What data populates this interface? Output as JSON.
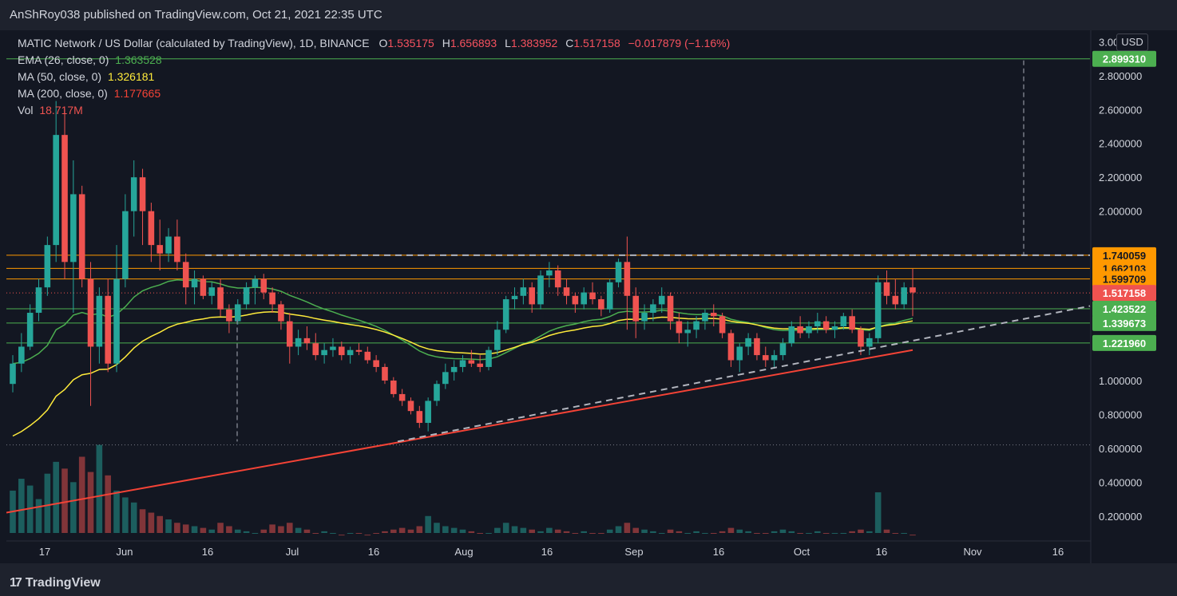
{
  "header": {
    "published": "AnShRoy038 published on TradingView.com, Oct 21, 2021 22:35 UTC"
  },
  "footer": {
    "logo_text": "TradingView",
    "logo_mark": "17"
  },
  "legend": {
    "symbol": "MATIC Network / US Dollar (calculated by TradingView), 1D, BINANCE",
    "o_key": "O",
    "o_val": "1.535175",
    "h_key": "H",
    "h_val": "1.656893",
    "l_key": "L",
    "l_val": "1.383952",
    "c_key": "C",
    "c_val": "1.517158",
    "change": "−0.017879 (−1.16%)",
    "ema_label": "EMA (26, close, 0)",
    "ema_val": "1.363528",
    "ma50_label": "MA (50, close, 0)",
    "ma50_val": "1.326181",
    "ma200_label": "MA (200, close, 0)",
    "ma200_val": "1.177665",
    "vol_label": "Vol",
    "vol_val": "18.717M"
  },
  "currency": "USD",
  "colors": {
    "up": "#26a69a",
    "down": "#ef5350",
    "ema": "#4caf50",
    "ma50": "#ffeb3b",
    "ma200": "#f44336",
    "orange": "#ff9800",
    "green": "#4caf50",
    "dashed": "#b2b5be",
    "bg": "#131722"
  },
  "chart_data": {
    "type": "candlestick",
    "title": "MATIC Network / US Dollar (calculated by TradingView), 1D, BINANCE",
    "y_ticks": [
      "3.000000",
      "2.800000",
      "2.600000",
      "2.400000",
      "2.200000",
      "2.000000",
      "1.000000",
      "0.800000",
      "0.600000",
      "0.400000",
      "0.200000"
    ],
    "x_ticks": [
      "17",
      "Jun",
      "16",
      "Jul",
      "16",
      "Aug",
      "16",
      "Sep",
      "16",
      "Oct",
      "16",
      "Nov",
      "16"
    ],
    "ylim": [
      0.1,
      3.03
    ],
    "price_labels": [
      {
        "value": 2.89931,
        "text": "2.899310",
        "color": "#4caf50"
      },
      {
        "value": 1.740059,
        "text": "1.740059",
        "color": "#ff9800"
      },
      {
        "value": 1.662103,
        "text": "1.662103",
        "color": "#ff9800"
      },
      {
        "value": 1.599709,
        "text": "1.599709",
        "color": "#ff9800"
      },
      {
        "value": 1.517158,
        "text": "1.517158",
        "color": "#ef5350"
      },
      {
        "value": 1.423522,
        "text": "1.423522",
        "color": "#4caf50"
      },
      {
        "value": 1.339673,
        "text": "1.339673",
        "color": "#4caf50"
      },
      {
        "value": 1.22196,
        "text": "1.221960",
        "color": "#4caf50"
      }
    ],
    "candles": [
      [
        0.98,
        1.15,
        0.93,
        1.1
      ],
      [
        1.1,
        1.28,
        1.05,
        1.2
      ],
      [
        1.2,
        1.45,
        1.18,
        1.4
      ],
      [
        1.4,
        1.6,
        1.35,
        1.55
      ],
      [
        1.55,
        1.85,
        1.5,
        1.8
      ],
      [
        1.8,
        2.65,
        1.7,
        2.45
      ],
      [
        2.45,
        2.6,
        1.6,
        1.7
      ],
      [
        1.7,
        2.3,
        1.4,
        2.1
      ],
      [
        2.1,
        2.15,
        1.55,
        1.6
      ],
      [
        1.6,
        1.7,
        0.85,
        1.2
      ],
      [
        1.2,
        1.55,
        1.1,
        1.5
      ],
      [
        1.5,
        1.6,
        1.05,
        1.1
      ],
      [
        1.1,
        1.8,
        1.05,
        1.6
      ],
      [
        1.6,
        2.1,
        1.55,
        2.0
      ],
      [
        2.0,
        2.3,
        1.85,
        2.2
      ],
      [
        2.2,
        2.25,
        1.8,
        2.0
      ],
      [
        2.0,
        2.05,
        1.7,
        1.8
      ],
      [
        1.8,
        1.95,
        1.65,
        1.75
      ],
      [
        1.75,
        1.9,
        1.7,
        1.85
      ],
      [
        1.85,
        1.95,
        1.65,
        1.7
      ],
      [
        1.7,
        1.75,
        1.45,
        1.55
      ],
      [
        1.55,
        1.65,
        1.45,
        1.6
      ],
      [
        1.6,
        1.62,
        1.48,
        1.5
      ],
      [
        1.5,
        1.58,
        1.45,
        1.55
      ],
      [
        1.55,
        1.6,
        1.38,
        1.42
      ],
      [
        1.42,
        1.45,
        1.28,
        1.35
      ],
      [
        1.35,
        1.48,
        1.33,
        1.45
      ],
      [
        1.45,
        1.58,
        1.42,
        1.55
      ],
      [
        1.55,
        1.62,
        1.45,
        1.6
      ],
      [
        1.6,
        1.63,
        1.48,
        1.52
      ],
      [
        1.52,
        1.55,
        1.4,
        1.45
      ],
      [
        1.45,
        1.47,
        1.3,
        1.35
      ],
      [
        1.35,
        1.4,
        1.1,
        1.2
      ],
      [
        1.2,
        1.3,
        1.15,
        1.25
      ],
      [
        1.25,
        1.32,
        1.18,
        1.22
      ],
      [
        1.22,
        1.28,
        1.12,
        1.15
      ],
      [
        1.15,
        1.22,
        1.1,
        1.18
      ],
      [
        1.18,
        1.25,
        1.14,
        1.2
      ],
      [
        1.2,
        1.23,
        1.12,
        1.15
      ],
      [
        1.15,
        1.2,
        1.1,
        1.18
      ],
      [
        1.18,
        1.22,
        1.15,
        1.17
      ],
      [
        1.17,
        1.2,
        1.1,
        1.12
      ],
      [
        1.12,
        1.15,
        1.05,
        1.08
      ],
      [
        1.08,
        1.1,
        0.98,
        1.0
      ],
      [
        1.0,
        1.02,
        0.9,
        0.92
      ],
      [
        0.92,
        0.95,
        0.85,
        0.88
      ],
      [
        0.88,
        0.9,
        0.8,
        0.82
      ],
      [
        0.82,
        0.85,
        0.72,
        0.75
      ],
      [
        0.75,
        0.9,
        0.7,
        0.88
      ],
      [
        0.88,
        1.0,
        0.85,
        0.98
      ],
      [
        0.98,
        1.1,
        0.95,
        1.05
      ],
      [
        1.05,
        1.12,
        1.0,
        1.08
      ],
      [
        1.08,
        1.15,
        1.05,
        1.12
      ],
      [
        1.12,
        1.18,
        1.08,
        1.1
      ],
      [
        1.1,
        1.15,
        1.05,
        1.08
      ],
      [
        1.08,
        1.2,
        1.06,
        1.18
      ],
      [
        1.18,
        1.35,
        1.15,
        1.3
      ],
      [
        1.3,
        1.5,
        1.28,
        1.48
      ],
      [
        1.48,
        1.55,
        1.42,
        1.5
      ],
      [
        1.5,
        1.6,
        1.45,
        1.55
      ],
      [
        1.55,
        1.58,
        1.4,
        1.45
      ],
      [
        1.45,
        1.65,
        1.42,
        1.62
      ],
      [
        1.62,
        1.7,
        1.55,
        1.65
      ],
      [
        1.65,
        1.68,
        1.5,
        1.55
      ],
      [
        1.55,
        1.6,
        1.45,
        1.5
      ],
      [
        1.5,
        1.52,
        1.4,
        1.45
      ],
      [
        1.45,
        1.55,
        1.42,
        1.52
      ],
      [
        1.52,
        1.58,
        1.45,
        1.48
      ],
      [
        1.48,
        1.5,
        1.38,
        1.42
      ],
      [
        1.42,
        1.6,
        1.4,
        1.58
      ],
      [
        1.58,
        1.72,
        1.55,
        1.7
      ],
      [
        1.7,
        1.85,
        1.3,
        1.5
      ],
      [
        1.5,
        1.55,
        1.25,
        1.35
      ],
      [
        1.35,
        1.45,
        1.3,
        1.4
      ],
      [
        1.4,
        1.48,
        1.35,
        1.45
      ],
      [
        1.45,
        1.55,
        1.4,
        1.5
      ],
      [
        1.5,
        1.52,
        1.3,
        1.35
      ],
      [
        1.35,
        1.4,
        1.22,
        1.28
      ],
      [
        1.28,
        1.35,
        1.2,
        1.3
      ],
      [
        1.3,
        1.38,
        1.25,
        1.35
      ],
      [
        1.35,
        1.42,
        1.3,
        1.4
      ],
      [
        1.4,
        1.45,
        1.32,
        1.38
      ],
      [
        1.38,
        1.4,
        1.25,
        1.28
      ],
      [
        1.28,
        1.3,
        1.08,
        1.12
      ],
      [
        1.12,
        1.22,
        1.05,
        1.2
      ],
      [
        1.2,
        1.28,
        1.15,
        1.25
      ],
      [
        1.25,
        1.28,
        1.12,
        1.15
      ],
      [
        1.15,
        1.2,
        1.08,
        1.12
      ],
      [
        1.12,
        1.18,
        1.08,
        1.15
      ],
      [
        1.15,
        1.25,
        1.12,
        1.22
      ],
      [
        1.22,
        1.35,
        1.2,
        1.32
      ],
      [
        1.32,
        1.38,
        1.25,
        1.28
      ],
      [
        1.28,
        1.35,
        1.25,
        1.32
      ],
      [
        1.32,
        1.4,
        1.28,
        1.35
      ],
      [
        1.35,
        1.38,
        1.28,
        1.3
      ],
      [
        1.3,
        1.35,
        1.25,
        1.32
      ],
      [
        1.32,
        1.4,
        1.3,
        1.38
      ],
      [
        1.38,
        1.42,
        1.28,
        1.3
      ],
      [
        1.3,
        1.32,
        1.15,
        1.2
      ],
      [
        1.2,
        1.28,
        1.15,
        1.25
      ],
      [
        1.25,
        1.62,
        1.22,
        1.58
      ],
      [
        1.58,
        1.65,
        1.45,
        1.5
      ],
      [
        1.5,
        1.6,
        1.42,
        1.45
      ],
      [
        1.45,
        1.58,
        1.42,
        1.55
      ],
      [
        1.55,
        1.66,
        1.38,
        1.52
      ]
    ],
    "volumes": [
      0.35,
      0.42,
      0.38,
      0.3,
      0.45,
      0.52,
      0.48,
      0.4,
      0.55,
      0.46,
      0.62,
      0.44,
      0.35,
      0.31,
      0.28,
      0.24,
      0.22,
      0.2,
      0.18,
      0.16,
      0.15,
      0.14,
      0.13,
      0.12,
      0.16,
      0.14,
      0.12,
      0.11,
      0.1,
      0.12,
      0.15,
      0.14,
      0.16,
      0.13,
      0.12,
      0.1,
      0.11,
      0.1,
      0.09,
      0.1,
      0.1,
      0.09,
      0.1,
      0.11,
      0.12,
      0.13,
      0.12,
      0.14,
      0.2,
      0.16,
      0.14,
      0.13,
      0.12,
      0.11,
      0.1,
      0.1,
      0.13,
      0.16,
      0.14,
      0.13,
      0.12,
      0.11,
      0.13,
      0.12,
      0.11,
      0.1,
      0.11,
      0.1,
      0.1,
      0.12,
      0.14,
      0.16,
      0.13,
      0.12,
      0.11,
      0.1,
      0.12,
      0.11,
      0.1,
      0.11,
      0.1,
      0.1,
      0.11,
      0.13,
      0.12,
      0.11,
      0.1,
      0.1,
      0.11,
      0.12,
      0.11,
      0.1,
      0.1,
      0.11,
      0.1,
      0.1,
      0.1,
      0.11,
      0.12,
      0.11,
      0.34,
      0.12,
      0.1,
      0.1,
      0.09
    ]
  }
}
